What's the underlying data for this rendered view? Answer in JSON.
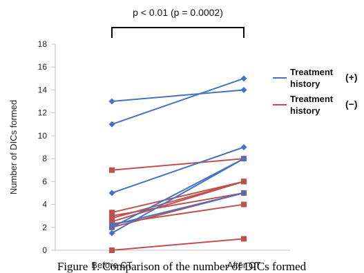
{
  "chart_data": {
    "type": "line",
    "categories": [
      "Before CT",
      "After CT"
    ],
    "ylabel": "Number of DICs formed",
    "ylim": [
      0,
      18
    ],
    "yticks": [
      0,
      2,
      4,
      6,
      8,
      10,
      12,
      14,
      16,
      18
    ],
    "significance": "p < 0.01 (p = 0.0002)",
    "caption": "Figure 1. Comparison of the number of DICs formed",
    "legend_position": "top-right",
    "colors": {
      "treated": "#4472C4",
      "untreated": "#C0504D"
    },
    "series": [
      {
        "name": "Treatment history",
        "sign": "(+)",
        "color": "#4472C4",
        "marker": "diamond",
        "pairs": [
          [
            13,
            14
          ],
          [
            11,
            15
          ],
          [
            5,
            9
          ],
          [
            2,
            8
          ],
          [
            1.5,
            8
          ],
          [
            2.2,
            5
          ]
        ]
      },
      {
        "name": "Treatment history",
        "sign": "(−)",
        "color": "#C0504D",
        "marker": "square",
        "pairs": [
          [
            7,
            8
          ],
          [
            3.3,
            6
          ],
          [
            3,
            5
          ],
          [
            2.8,
            6
          ],
          [
            2.5,
            6
          ],
          [
            2.3,
            4
          ],
          [
            2,
            5
          ],
          [
            0,
            1
          ]
        ]
      }
    ]
  }
}
